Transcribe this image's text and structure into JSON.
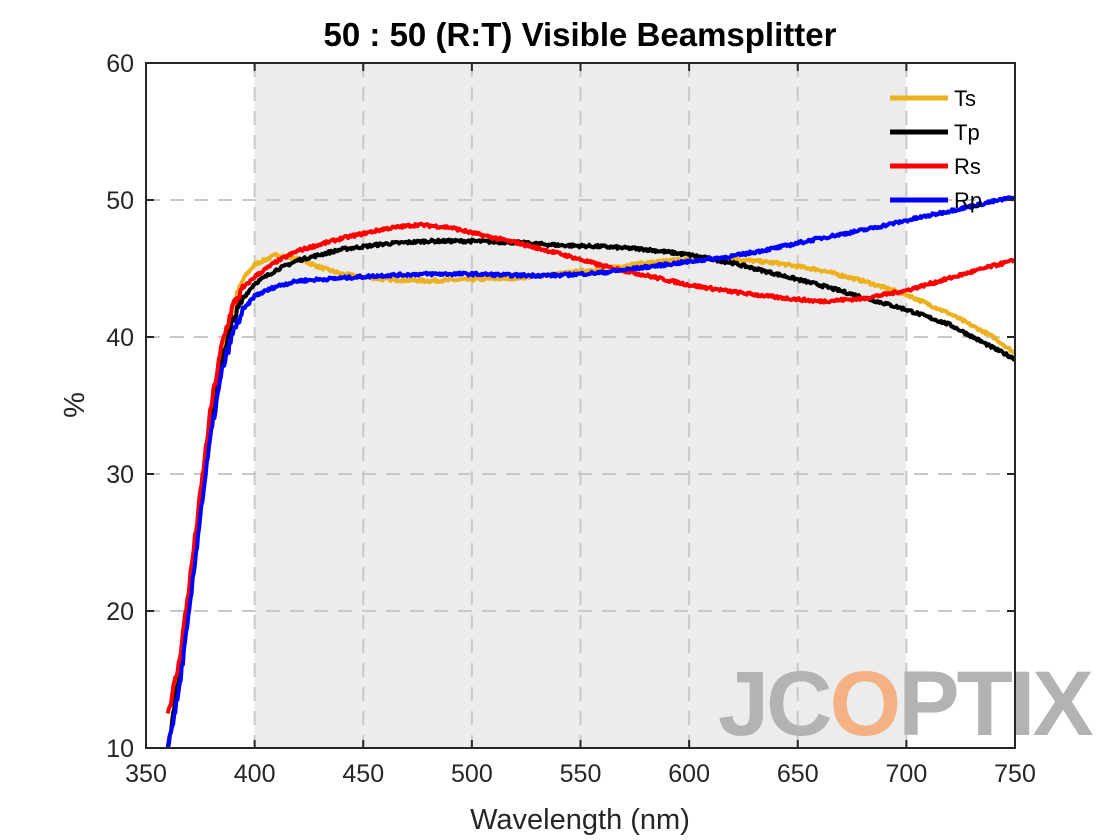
{
  "chart_data": {
    "type": "line",
    "title": "50 : 50 (R:T) Visible Beamsplitter",
    "xlabel": "Wavelength (nm)",
    "ylabel": "%",
    "xlim": [
      350,
      750
    ],
    "ylim": [
      10,
      60
    ],
    "xticks": [
      "350",
      "400",
      "450",
      "500",
      "550",
      "600",
      "650",
      "700",
      "750"
    ],
    "yticks": [
      "10",
      "20",
      "30",
      "40",
      "50",
      "60"
    ],
    "grid": true,
    "shaded_band": [
      400,
      700
    ],
    "legend_position": "top-right",
    "series": [
      {
        "name": "Ts",
        "color": "#EDB120",
        "points": [
          [
            360,
            10
          ],
          [
            365,
            15
          ],
          [
            370,
            21
          ],
          [
            375,
            28
          ],
          [
            380,
            34
          ],
          [
            385,
            39
          ],
          [
            390,
            42.2
          ],
          [
            395,
            44.3
          ],
          [
            400,
            45.3
          ],
          [
            410,
            46
          ],
          [
            420,
            45.7
          ],
          [
            430,
            45.1
          ],
          [
            440,
            44.6
          ],
          [
            450,
            44.4
          ],
          [
            460,
            44.2
          ],
          [
            480,
            44.1
          ],
          [
            500,
            44.2
          ],
          [
            520,
            44.3
          ],
          [
            540,
            44.6
          ],
          [
            560,
            45
          ],
          [
            580,
            45.4
          ],
          [
            600,
            45.7
          ],
          [
            620,
            45.7
          ],
          [
            640,
            45.4
          ],
          [
            660,
            44.9
          ],
          [
            680,
            44.1
          ],
          [
            700,
            43.1
          ],
          [
            720,
            41.7
          ],
          [
            740,
            40
          ],
          [
            750,
            38.8
          ]
        ]
      },
      {
        "name": "Tp",
        "color": "#000000",
        "points": [
          [
            360,
            10
          ],
          [
            365,
            15
          ],
          [
            370,
            21
          ],
          [
            375,
            28
          ],
          [
            380,
            34
          ],
          [
            385,
            38.5
          ],
          [
            390,
            41.2
          ],
          [
            395,
            42.9
          ],
          [
            400,
            43.9
          ],
          [
            410,
            44.9
          ],
          [
            420,
            45.6
          ],
          [
            440,
            46.4
          ],
          [
            460,
            46.8
          ],
          [
            480,
            47
          ],
          [
            500,
            47
          ],
          [
            520,
            46.9
          ],
          [
            540,
            46.7
          ],
          [
            560,
            46.6
          ],
          [
            580,
            46.4
          ],
          [
            600,
            46
          ],
          [
            620,
            45.4
          ],
          [
            640,
            44.6
          ],
          [
            660,
            43.8
          ],
          [
            680,
            42.9
          ],
          [
            700,
            42
          ],
          [
            720,
            40.9
          ],
          [
            740,
            39.2
          ],
          [
            750,
            38.4
          ]
        ]
      },
      {
        "name": "Rs",
        "color": "#FF0000",
        "points": [
          [
            360,
            12.5
          ],
          [
            365,
            16
          ],
          [
            370,
            22
          ],
          [
            375,
            28.5
          ],
          [
            380,
            35
          ],
          [
            385,
            39.5
          ],
          [
            390,
            42.3
          ],
          [
            395,
            43.6
          ],
          [
            400,
            44.4
          ],
          [
            410,
            45.5
          ],
          [
            420,
            46.3
          ],
          [
            440,
            47.2
          ],
          [
            460,
            47.9
          ],
          [
            475,
            48.2
          ],
          [
            490,
            48
          ],
          [
            500,
            47.6
          ],
          [
            520,
            46.9
          ],
          [
            540,
            46.1
          ],
          [
            560,
            45.2
          ],
          [
            580,
            44.5
          ],
          [
            600,
            43.8
          ],
          [
            620,
            43.3
          ],
          [
            640,
            42.9
          ],
          [
            660,
            42.6
          ],
          [
            680,
            42.8
          ],
          [
            700,
            43.4
          ],
          [
            720,
            44.3
          ],
          [
            740,
            45.2
          ],
          [
            750,
            45.6
          ]
        ]
      },
      {
        "name": "Rp",
        "color": "#0000FF",
        "points": [
          [
            360,
            10
          ],
          [
            365,
            14
          ],
          [
            370,
            20
          ],
          [
            375,
            27
          ],
          [
            380,
            33
          ],
          [
            385,
            37.5
          ],
          [
            390,
            40.3
          ],
          [
            395,
            42
          ],
          [
            400,
            43
          ],
          [
            410,
            43.7
          ],
          [
            420,
            44.1
          ],
          [
            440,
            44.3
          ],
          [
            460,
            44.5
          ],
          [
            480,
            44.6
          ],
          [
            500,
            44.6
          ],
          [
            520,
            44.5
          ],
          [
            540,
            44.5
          ],
          [
            560,
            44.7
          ],
          [
            580,
            45.1
          ],
          [
            600,
            45.5
          ],
          [
            620,
            45.9
          ],
          [
            640,
            46.5
          ],
          [
            660,
            47.2
          ],
          [
            680,
            47.8
          ],
          [
            700,
            48.5
          ],
          [
            720,
            49.2
          ],
          [
            740,
            49.9
          ],
          [
            750,
            50.2
          ]
        ]
      }
    ]
  },
  "logo": {
    "text": "JCOPTIX",
    "colors": [
      "#B3B3B3",
      "#F4B183"
    ]
  }
}
